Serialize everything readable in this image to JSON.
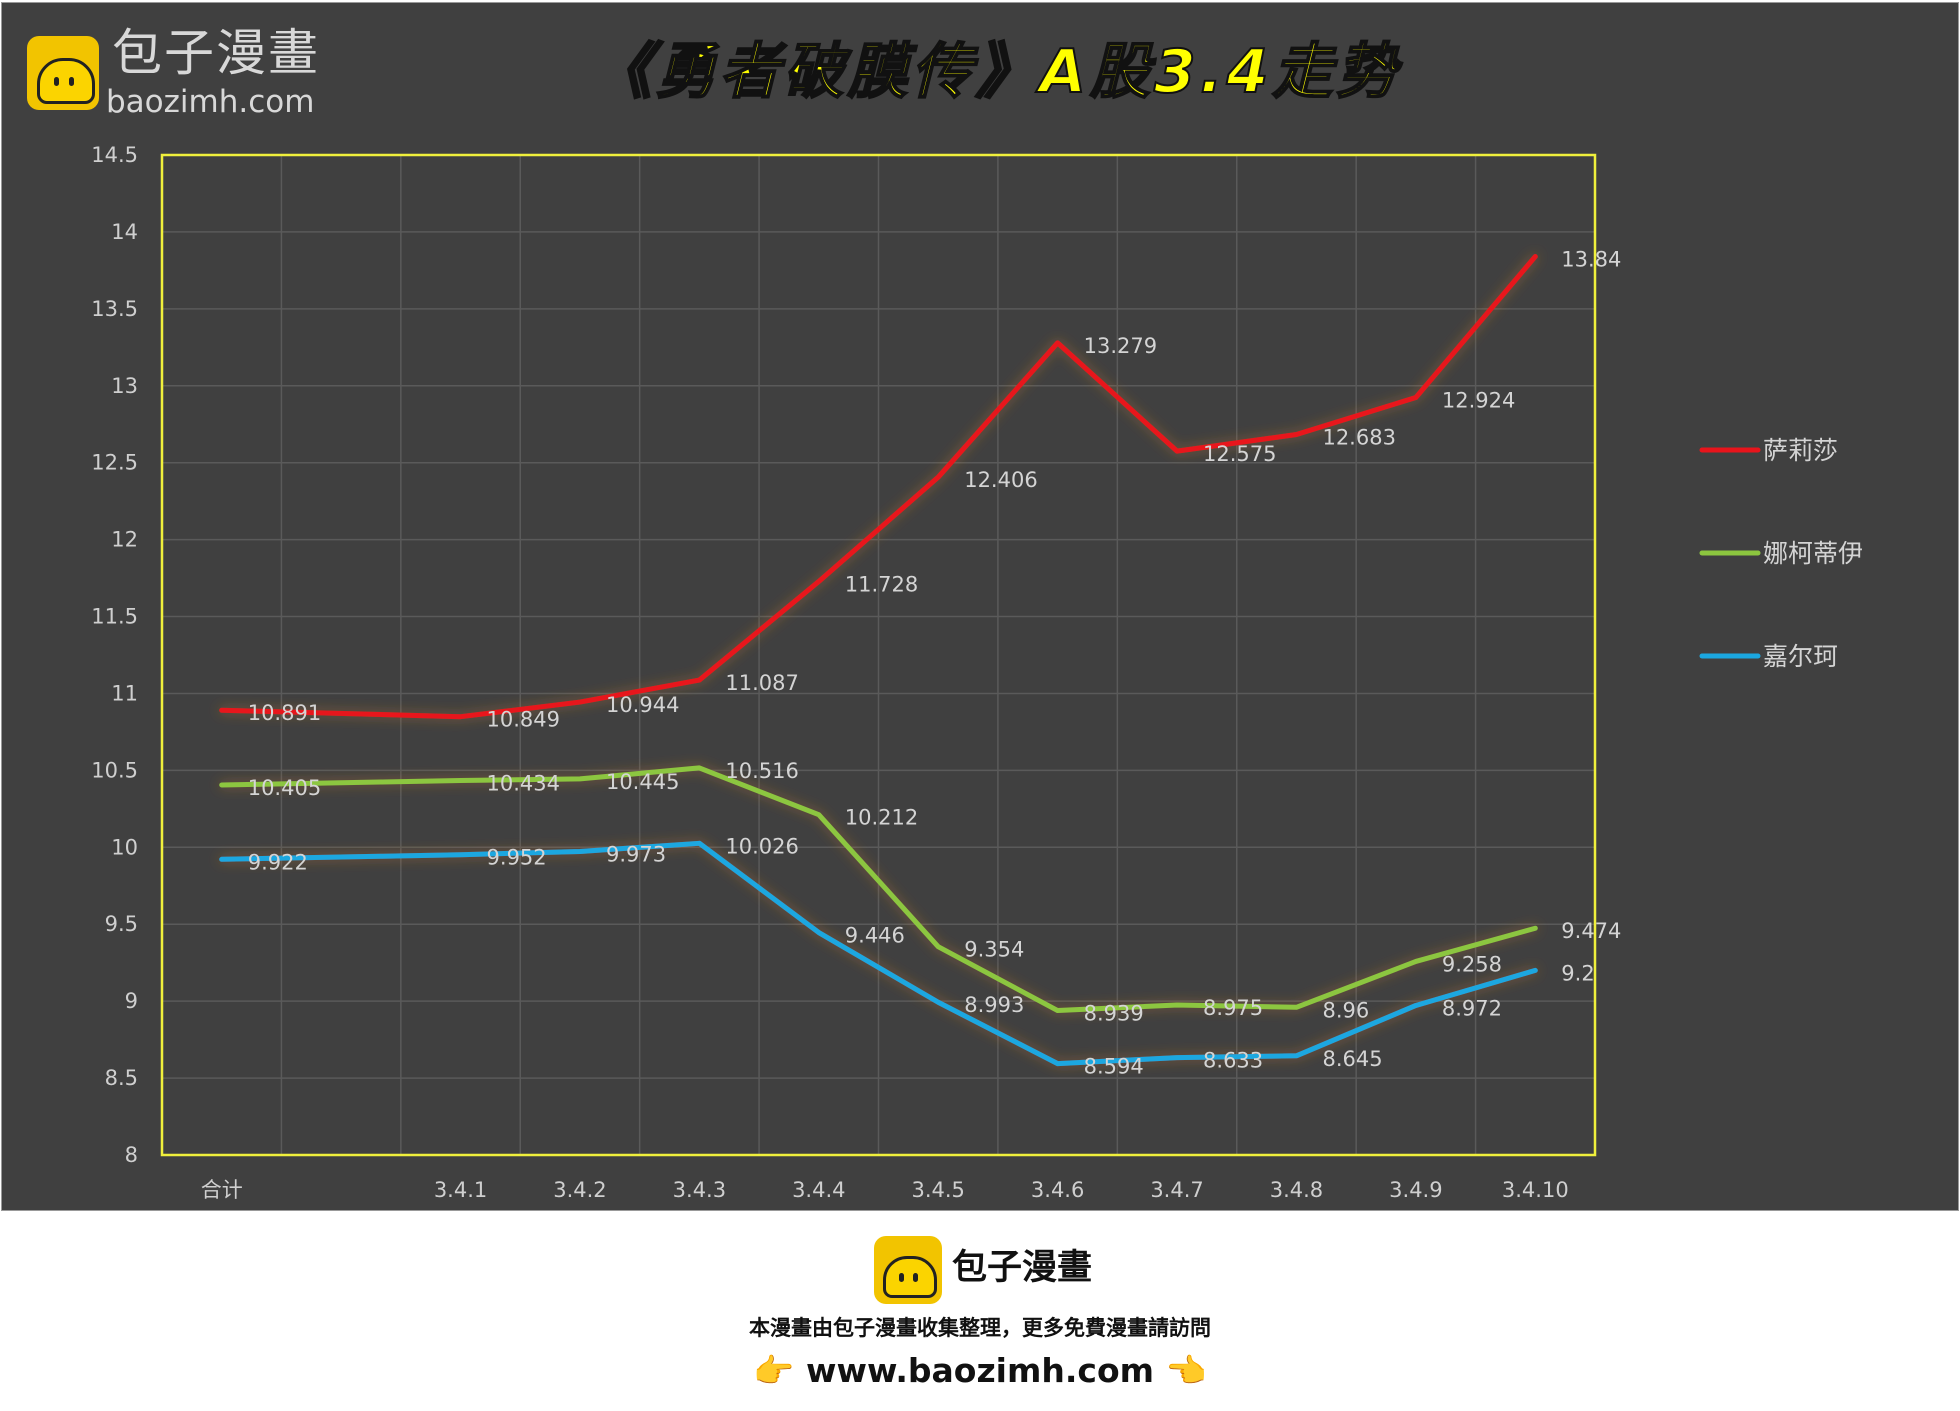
{
  "header": {
    "brand_cn": "包子漫畫",
    "brand_en": "baozimh.com"
  },
  "chart_data": {
    "type": "line",
    "title": "《勇者破膜传》A股3.4走势",
    "xlabel": "",
    "ylabel": "",
    "categories": [
      "合计",
      "",
      "3.4.1",
      "3.4.2",
      "3.4.3",
      "3.4.4",
      "3.4.5",
      "3.4.6",
      "3.4.7",
      "3.4.8",
      "3.4.9",
      "3.4.10"
    ],
    "ylim": [
      8,
      14.5
    ],
    "yticks": [
      "8",
      "8.5",
      "9",
      "9.5",
      "10",
      "10.5",
      "11",
      "11.5",
      "12",
      "12.5",
      "13",
      "13.5",
      "14",
      "14.5"
    ],
    "grid": true,
    "legend_position": "right",
    "series": [
      {
        "name": "萨莉莎",
        "color": "#e8141b",
        "values": [
          10.891,
          null,
          10.849,
          10.944,
          11.087,
          11.728,
          12.406,
          13.279,
          12.575,
          12.683,
          12.924,
          13.84
        ]
      },
      {
        "name": "娜柯蒂伊",
        "color": "#8cc63f",
        "values": [
          10.405,
          null,
          10.434,
          10.445,
          10.516,
          10.212,
          9.354,
          8.939,
          8.975,
          8.96,
          9.258,
          9.474
        ]
      },
      {
        "name": "嘉尔珂",
        "color": "#1ba7e0",
        "values": [
          9.922,
          null,
          9.952,
          9.973,
          10.026,
          9.446,
          8.993,
          8.594,
          8.633,
          8.645,
          8.972,
          9.2
        ]
      }
    ],
    "colors": {
      "background": "#404040",
      "plot_border": "#f0f03c",
      "grid": "#5a5a5a",
      "text": "#cfcfcf",
      "title": "#ffff00"
    }
  },
  "footer": {
    "brand": "包子漫畫",
    "line1": "本漫畫由包子漫畫收集整理，更多免費漫畫請訪問",
    "hand_left": "👉",
    "url": "www.baozimh.com",
    "hand_right": "👈"
  }
}
